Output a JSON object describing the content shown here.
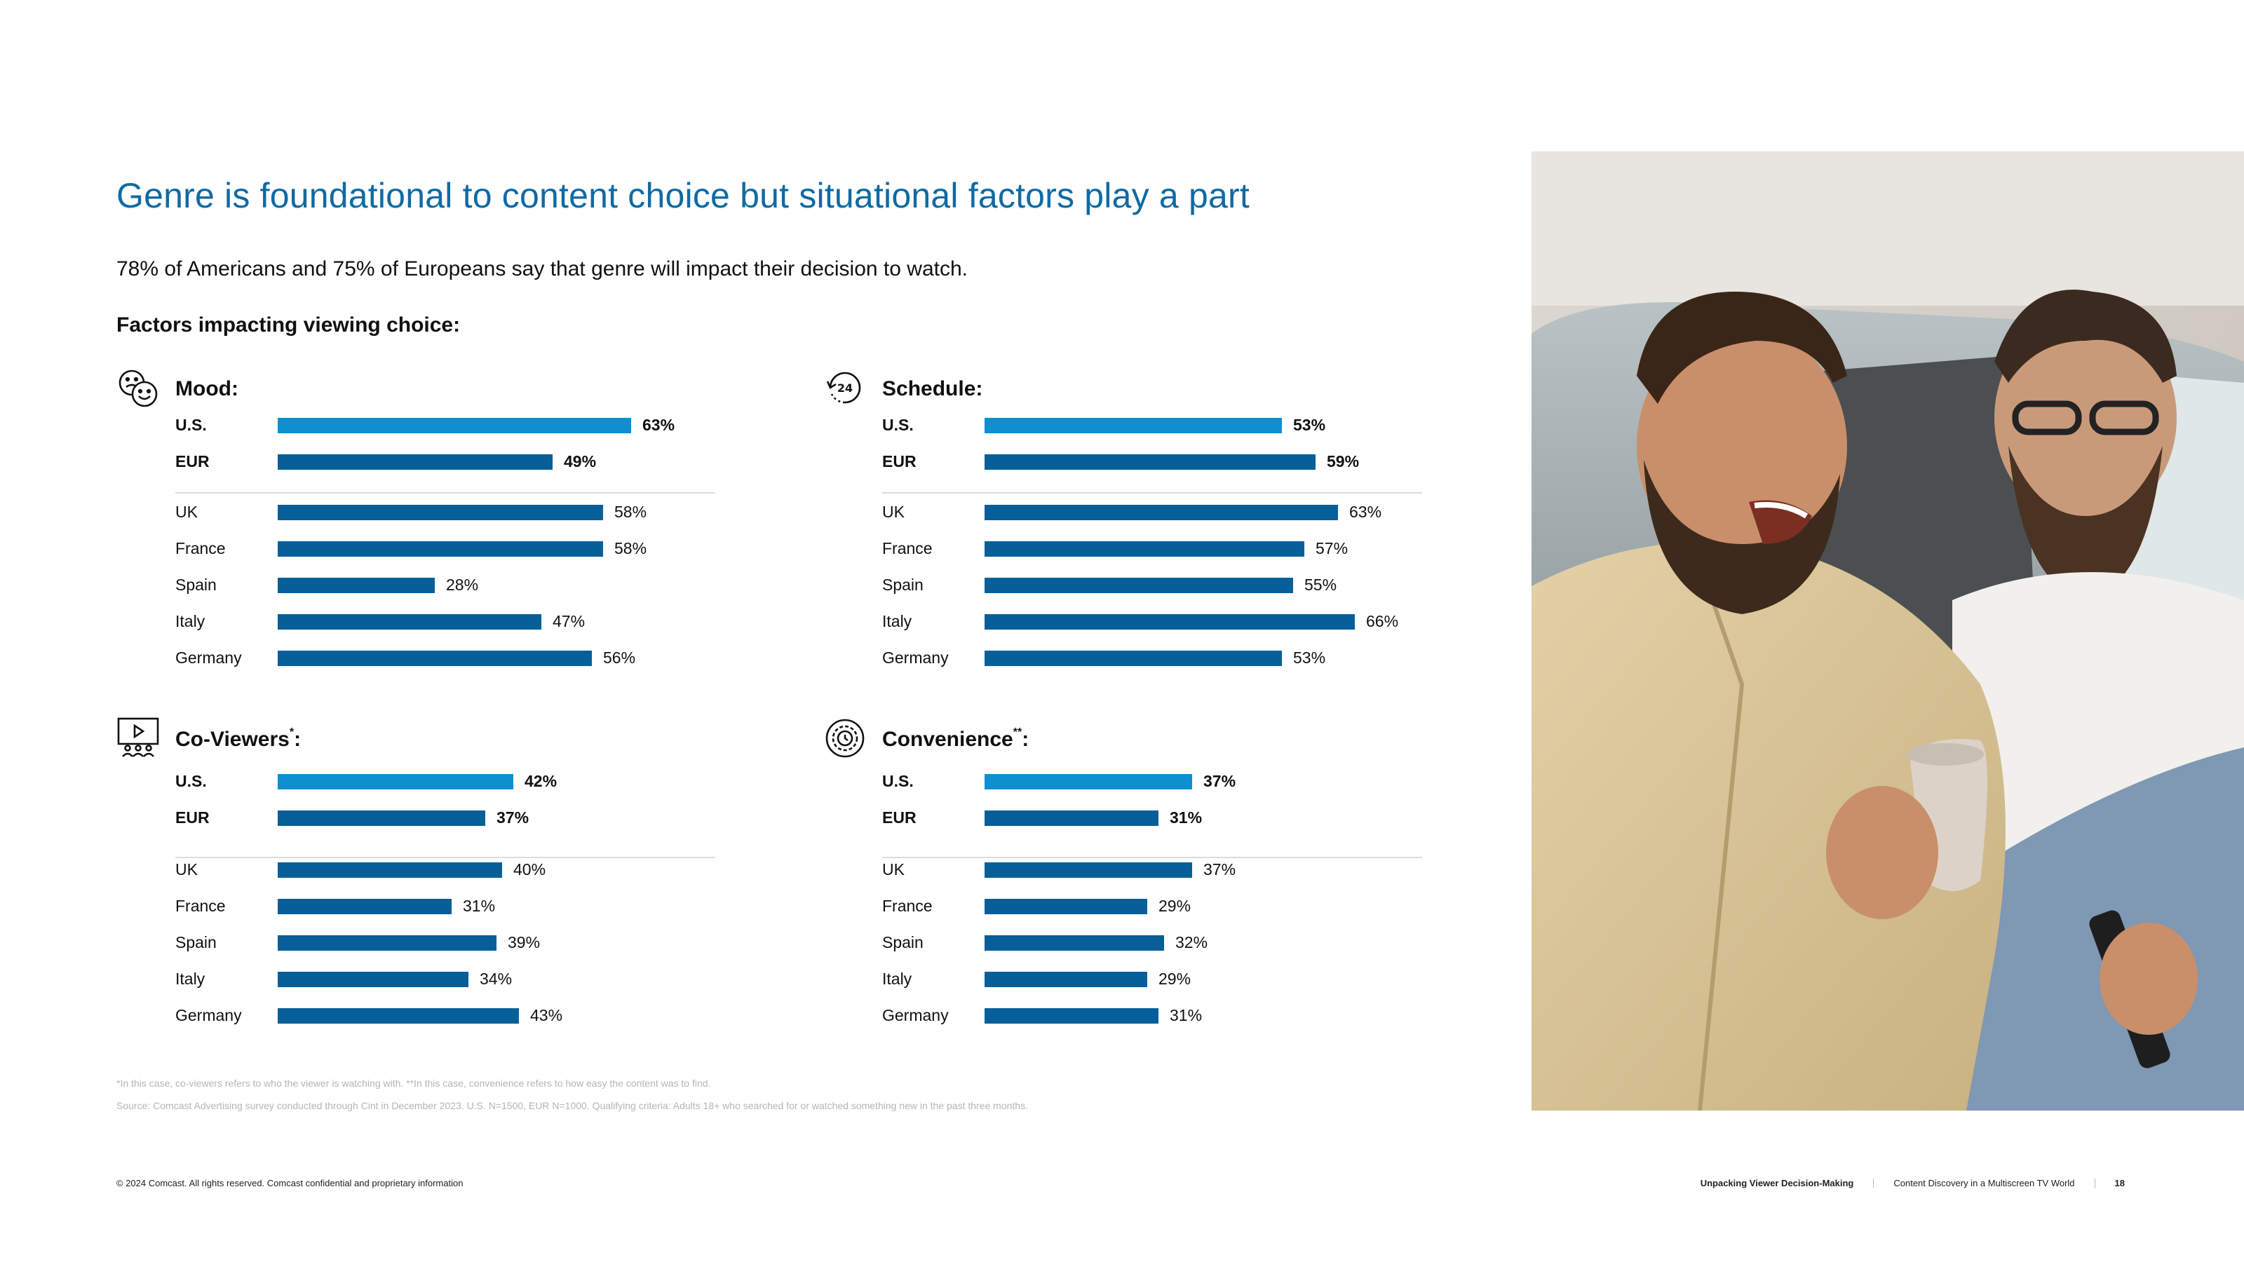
{
  "title": "Genre is foundational to content choice but situational factors play a part",
  "subtitle": "78% of Americans and 75% of Europeans say that genre will impact their decision to watch.",
  "factors_heading": "Factors impacting viewing choice:",
  "colors": {
    "us_bar": "#0e8fd0",
    "bar": "#065f99",
    "title": "#0f6aa3"
  },
  "panels": [
    {
      "title": "Mood:",
      "sup": "",
      "icon": "mood-faces-icon"
    },
    {
      "title": "Schedule:",
      "sup": "",
      "icon": "24-hour-clock-icon"
    },
    {
      "title": "Co-Viewers",
      "sup": "*",
      "suffix": ":",
      "icon": "co-viewers-screen-icon"
    },
    {
      "title": "Convenience",
      "sup": "**",
      "suffix": ":",
      "icon": "gear-convenience-icon"
    }
  ],
  "chart_data": [
    {
      "type": "bar",
      "title": "Mood:",
      "orientation": "horizontal",
      "categories": [
        "U.S.",
        "EUR",
        "UK",
        "France",
        "Spain",
        "Italy",
        "Germany"
      ],
      "values": [
        63,
        49,
        58,
        58,
        28,
        47,
        56
      ],
      "value_labels": [
        "63%",
        "49%",
        "58%",
        "58%",
        "28%",
        "47%",
        "56%"
      ],
      "unit": "%"
    },
    {
      "type": "bar",
      "title": "Schedule:",
      "orientation": "horizontal",
      "categories": [
        "U.S.",
        "EUR",
        "UK",
        "France",
        "Spain",
        "Italy",
        "Germany"
      ],
      "values": [
        53,
        59,
        63,
        57,
        55,
        66,
        53
      ],
      "value_labels": [
        "53%",
        "59%",
        "63%",
        "57%",
        "55%",
        "66%",
        "53%"
      ],
      "unit": "%"
    },
    {
      "type": "bar",
      "title": "Co-Viewers*:",
      "orientation": "horizontal",
      "categories": [
        "U.S.",
        "EUR",
        "UK",
        "France",
        "Spain",
        "Italy",
        "Germany"
      ],
      "values": [
        42,
        37,
        40,
        31,
        39,
        34,
        43
      ],
      "value_labels": [
        "42%",
        "37%",
        "40%",
        "31%",
        "39%",
        "34%",
        "43%"
      ],
      "unit": "%"
    },
    {
      "type": "bar",
      "title": "Convenience**:",
      "orientation": "horizontal",
      "categories": [
        "U.S.",
        "EUR",
        "UK",
        "France",
        "Spain",
        "Italy",
        "Germany"
      ],
      "values": [
        37,
        31,
        37,
        29,
        32,
        29,
        31
      ],
      "value_labels": [
        "37%",
        "31%",
        "37%",
        "29%",
        "32%",
        "29%",
        "31%"
      ],
      "unit": "%"
    }
  ],
  "footnotes": {
    "line1": "*In this case, co-viewers refers to who the viewer is watching with. **In this case, convenience refers to how easy the content was to find.",
    "line2": "Source: Comcast Advertising survey conducted through Cint in December 2023. U.S. N=1500, EUR N=1000. Qualifying criteria: Adults 18+ who searched for or watched something new in the past three months."
  },
  "footer": {
    "copyright": "© 2024 Comcast. All rights reserved. Comcast confidential and proprietary information",
    "section": "Unpacking Viewer Decision-Making",
    "report": "Content Discovery in a Multiscreen TV World",
    "page": "18"
  }
}
